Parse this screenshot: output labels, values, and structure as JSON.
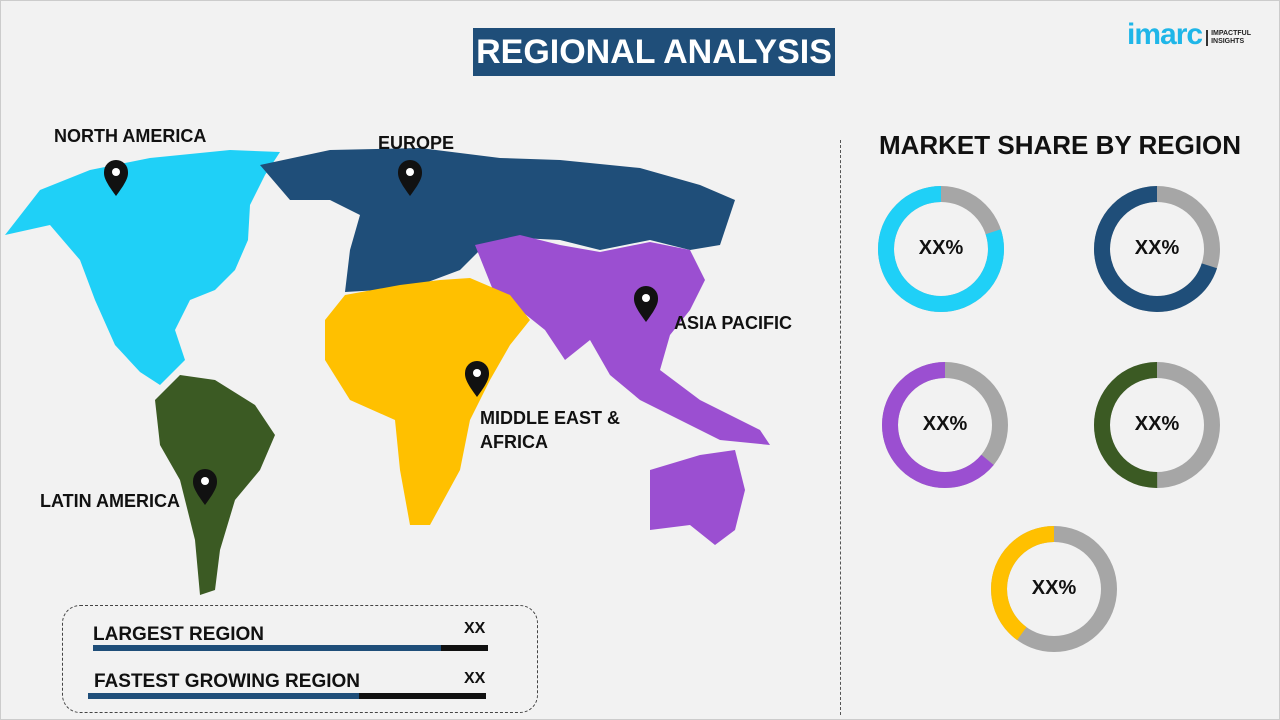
{
  "title": "REGIONAL ANALYSIS",
  "logo": {
    "word": "imarc",
    "tagline": "IMPACTFUL INSIGHTS"
  },
  "map": {
    "regions": [
      {
        "name": "NORTH AMERICA",
        "color": "#1fd0f7"
      },
      {
        "name": "EUROPE",
        "color": "#1f4e79"
      },
      {
        "name": "ASIA PACIFIC",
        "color": "#9b4fd1"
      },
      {
        "name": "MIDDLE EAST & AFRICA",
        "color": "#ffc000"
      },
      {
        "name": "LATIN AMERICA",
        "color": "#3b5a23"
      }
    ],
    "pin_icon": "map-pin-icon"
  },
  "market_share": {
    "title": "MARKET SHARE BY REGION",
    "track_color": "#a6a6a6",
    "donuts": [
      {
        "label": "XX%",
        "color": "#1fd0f7",
        "fraction": 0.8
      },
      {
        "label": "XX%",
        "color": "#1f4e79",
        "fraction": 0.7
      },
      {
        "label": "XX%",
        "color": "#9b4fd1",
        "fraction": 0.64
      },
      {
        "label": "XX%",
        "color": "#3b5a23",
        "fraction": 0.5
      },
      {
        "label": "XX%",
        "color": "#ffc000",
        "fraction": 0.4
      }
    ]
  },
  "summary": {
    "rows": [
      {
        "label": "LARGEST REGION",
        "value": "XX",
        "fraction": 0.88
      },
      {
        "label": "FASTEST GROWING REGION",
        "value": "XX",
        "fraction": 0.68
      }
    ]
  }
}
